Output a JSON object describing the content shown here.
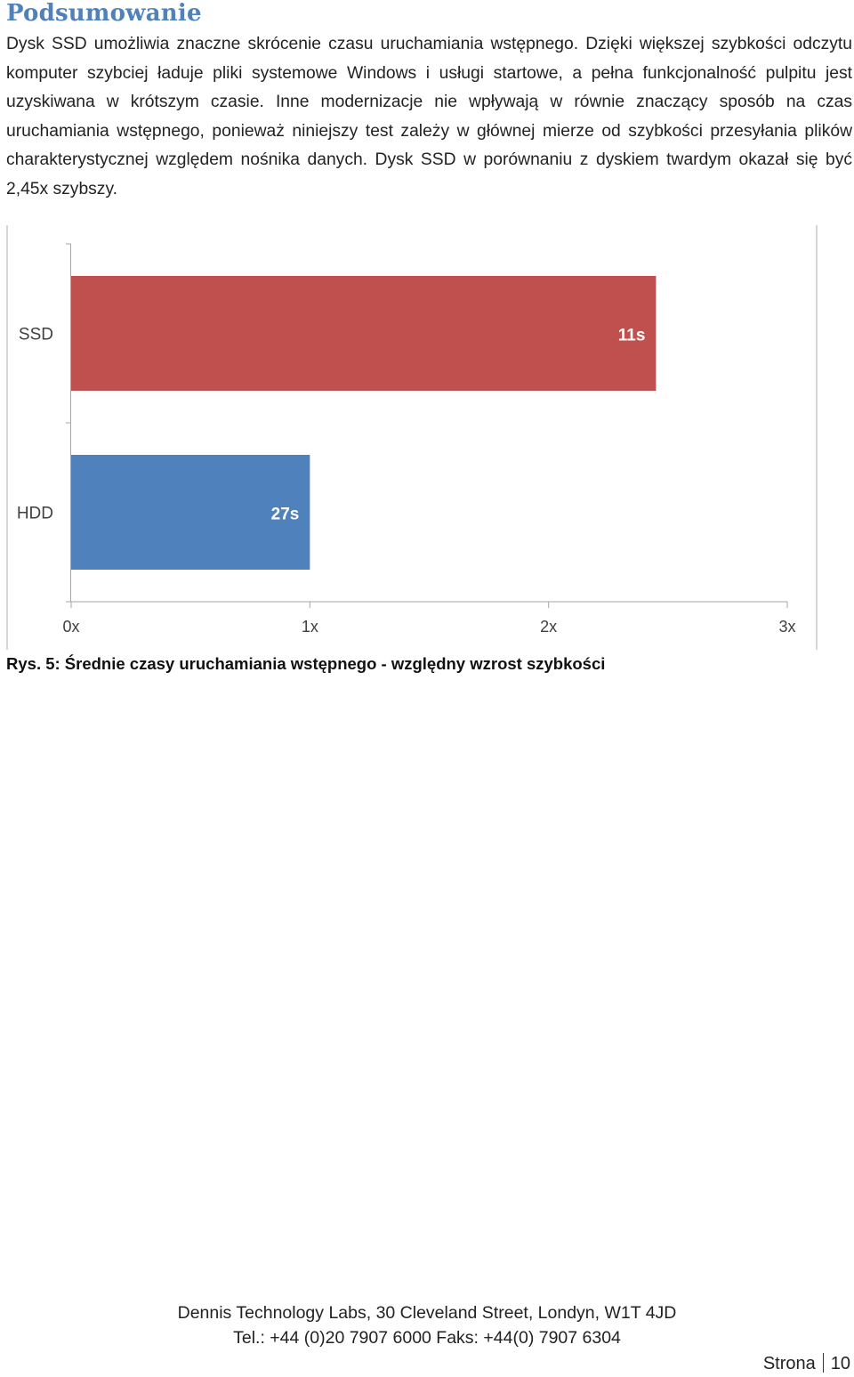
{
  "section": {
    "heading": "Podsumowanie",
    "paragraph": "Dysk SSD umożliwia znaczne skrócenie czasu uruchamiania wstępnego. Dzięki większej szybkości odczytu komputer szybciej ładuje pliki systemowe Windows i usługi startowe, a pełna funkcjonalność pulpitu jest uzyskiwana w krótszym czasie. Inne modernizacje nie wpływają w równie znaczący sposób na czas uruchamiania wstępnego, ponieważ niniejszy test zależy w głównej mierze od szybkości przesyłania plików charakterystycznej względem nośnika danych. Dysk SSD w porównaniu z dyskiem twardym okazał się być 2,45x szybszy."
  },
  "chart_data": {
    "type": "bar",
    "orientation": "horizontal",
    "categories": [
      "SSD",
      "HDD"
    ],
    "values": [
      2.45,
      1.0
    ],
    "data_labels": [
      "11s",
      "27s"
    ],
    "colors": [
      "#c0504d",
      "#4f81bd"
    ],
    "x_ticks": [
      "0x",
      "1x",
      "2x",
      "3x"
    ],
    "xlim": [
      0,
      3
    ],
    "grid": false
  },
  "figure": {
    "caption": "Rys. 5: Średnie czasy uruchamiania wstępnego - względny wzrost szybkości"
  },
  "footer": {
    "address": "Dennis Technology Labs, 30 Cleveland Street, Londyn, W1T 4JD",
    "contact": "Tel.: +44 (0)20 7907 6000 Faks: +44(0) 7907 6304",
    "page_label": "Strona",
    "page_number": "10"
  }
}
